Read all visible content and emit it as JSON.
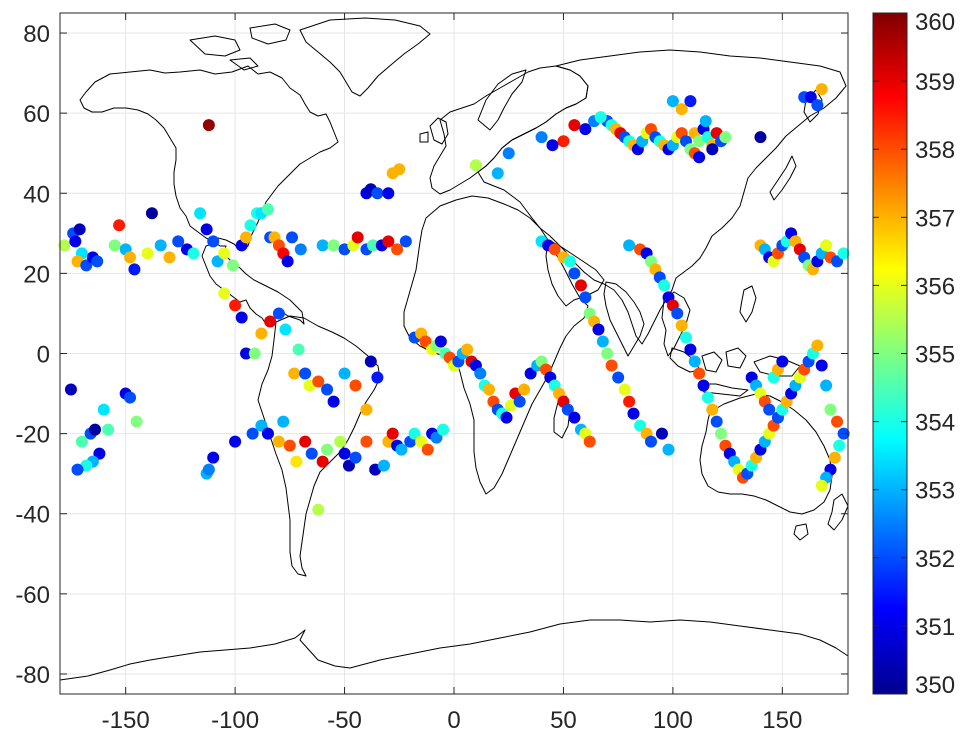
{
  "chart_data": {
    "type": "scatter",
    "title": "",
    "xlabel": "",
    "ylabel": "",
    "xlim": [
      -180,
      180
    ],
    "ylim": [
      -85,
      85
    ],
    "xticks": [
      -150,
      -100,
      -50,
      0,
      50,
      100,
      150
    ],
    "yticks": [
      80,
      60,
      40,
      20,
      0,
      -20,
      -40,
      -60,
      -80
    ],
    "xtick_labels": [
      "-150",
      "-100",
      "-50",
      "0",
      "50",
      "100",
      "150"
    ],
    "ytick_labels": [
      "80",
      "60",
      "40",
      "20",
      "0",
      "-20",
      "-40",
      "-60",
      "-80"
    ],
    "grid": true,
    "background_map": "world coastline outline",
    "colormap": "jet",
    "colorbar": {
      "range": [
        350,
        360
      ],
      "ticks": [
        350,
        351,
        352,
        353,
        354,
        355,
        356,
        357,
        358,
        359,
        360
      ],
      "tick_labels": [
        "350",
        "351",
        "352",
        "353",
        "354",
        "355",
        "356",
        "357",
        "358",
        "359",
        "360"
      ],
      "placement": "right"
    },
    "colors": {
      "coastline": "#000000",
      "grid": "#e6e6e6",
      "axes": "#262626"
    },
    "points": [
      [
        -178,
        27,
        355.5
      ],
      [
        -174,
        30,
        352
      ],
      [
        -171,
        31,
        350.5
      ],
      [
        -173,
        28,
        351
      ],
      [
        -170,
        25,
        353.5
      ],
      [
        -172,
        23,
        357
      ],
      [
        -168,
        22,
        352
      ],
      [
        -165,
        24,
        351
      ],
      [
        -163,
        23,
        352
      ],
      [
        -155,
        27,
        355
      ],
      [
        -153,
        32,
        358.5
      ],
      [
        -150,
        26,
        353
      ],
      [
        -148,
        24,
        357
      ],
      [
        -146,
        21,
        351.5
      ],
      [
        -140,
        25,
        356
      ],
      [
        -138,
        35,
        350.2
      ],
      [
        -134,
        27,
        353
      ],
      [
        -130,
        24,
        357
      ],
      [
        -126,
        28,
        352
      ],
      [
        -122,
        26,
        351
      ],
      [
        -119,
        25,
        354
      ],
      [
        -116,
        35,
        353.5
      ],
      [
        -113,
        31,
        351
      ],
      [
        -110,
        28,
        352
      ],
      [
        -108,
        23,
        353
      ],
      [
        -105,
        25,
        356
      ],
      [
        -101,
        22,
        355
      ],
      [
        -97,
        27,
        351
      ],
      [
        -95,
        29,
        357
      ],
      [
        -93,
        32,
        354
      ],
      [
        -90,
        35,
        354
      ],
      [
        -88,
        35,
        353.5
      ],
      [
        -85,
        36,
        354.5
      ],
      [
        -84,
        29,
        352
      ],
      [
        -82,
        29,
        357
      ],
      [
        -80,
        27,
        358
      ],
      [
        -78,
        25,
        358.8
      ],
      [
        -76,
        23,
        351
      ],
      [
        -74,
        29,
        352
      ],
      [
        -70,
        26,
        352.5
      ],
      [
        -60,
        27,
        353
      ],
      [
        -55,
        27,
        355
      ],
      [
        -50,
        26,
        352
      ],
      [
        -46,
        27,
        356
      ],
      [
        -44,
        29,
        359
      ],
      [
        -40,
        26,
        352
      ],
      [
        -37,
        27,
        354.5
      ],
      [
        -33,
        27,
        351
      ],
      [
        -30,
        28,
        359
      ],
      [
        -26,
        26,
        358
      ],
      [
        -22,
        28,
        352
      ],
      [
        -40,
        40,
        351
      ],
      [
        -38,
        41,
        350.5
      ],
      [
        -35,
        40,
        352
      ],
      [
        -30,
        40,
        351
      ],
      [
        -28,
        45,
        357
      ],
      [
        -25,
        46,
        357
      ],
      [
        -112,
        57,
        359.8
      ],
      [
        -175,
        -9,
        350.5
      ],
      [
        -160,
        -14,
        353.5
      ],
      [
        -158,
        -19,
        354.5
      ],
      [
        -150,
        -10,
        351
      ],
      [
        -148,
        -11,
        352
      ],
      [
        -145,
        -17,
        355
      ],
      [
        -170,
        -22,
        354.5
      ],
      [
        -166,
        -20,
        352
      ],
      [
        -164,
        -19,
        350.2
      ],
      [
        -162,
        -25,
        351
      ],
      [
        -165,
        -27,
        353
      ],
      [
        -168,
        -28,
        354
      ],
      [
        -172,
        -29,
        352
      ],
      [
        -113,
        -30,
        353
      ],
      [
        -112,
        -29,
        352.5
      ],
      [
        -110,
        -26,
        351
      ],
      [
        -100,
        -22,
        351
      ],
      [
        -92,
        -20,
        352
      ],
      [
        -88,
        -18,
        353
      ],
      [
        -85,
        -20,
        351
      ],
      [
        -80,
        -22,
        357
      ],
      [
        -78,
        -17,
        353
      ],
      [
        -75,
        -23,
        358
      ],
      [
        -72,
        -27,
        356.5
      ],
      [
        -68,
        -22,
        359
      ],
      [
        -65,
        -25,
        352
      ],
      [
        -60,
        -27,
        359
      ],
      [
        -58,
        -24,
        355
      ],
      [
        -52,
        -22,
        355.5
      ],
      [
        -50,
        -25,
        351
      ],
      [
        -48,
        -28,
        350.5
      ],
      [
        -45,
        -26,
        352
      ],
      [
        -40,
        -22,
        358
      ],
      [
        -36,
        -29,
        350.5
      ],
      [
        -32,
        -28,
        353
      ],
      [
        -30,
        -22,
        357
      ],
      [
        -28,
        -20,
        359
      ],
      [
        -26,
        -23,
        351
      ],
      [
        -24,
        -24,
        353
      ],
      [
        -20,
        -22,
        352
      ],
      [
        -18,
        -20,
        354
      ],
      [
        -15,
        -22,
        356
      ],
      [
        -12,
        -24,
        358
      ],
      [
        -10,
        -20,
        351
      ],
      [
        -8,
        -21,
        352.5
      ],
      [
        -5,
        -19,
        354
      ],
      [
        -62,
        -39,
        355.5
      ],
      [
        -105,
        15,
        356
      ],
      [
        -100,
        12,
        358.5
      ],
      [
        -97,
        9,
        351
      ],
      [
        -95,
        0,
        351
      ],
      [
        -91,
        0,
        355
      ],
      [
        -88,
        5,
        357
      ],
      [
        -84,
        8,
        359
      ],
      [
        -80,
        10,
        352
      ],
      [
        -77,
        6,
        353.5
      ],
      [
        -73,
        -5,
        357
      ],
      [
        -71,
        1,
        354.5
      ],
      [
        -68,
        -5,
        352
      ],
      [
        -66,
        -8,
        356
      ],
      [
        -62,
        -7,
        358
      ],
      [
        -58,
        -9,
        352
      ],
      [
        -55,
        -12,
        351
      ],
      [
        -50,
        -5,
        353
      ],
      [
        -45,
        -8,
        358
      ],
      [
        -40,
        -14,
        357
      ],
      [
        -38,
        -2,
        350.5
      ],
      [
        -35,
        -6,
        351.5
      ],
      [
        -18,
        4,
        352
      ],
      [
        -15,
        5,
        357
      ],
      [
        -13,
        3,
        358
      ],
      [
        -10,
        1,
        356
      ],
      [
        -8,
        2,
        355
      ],
      [
        -6,
        3,
        351
      ],
      [
        -4,
        0,
        354.5
      ],
      [
        -2,
        -1,
        358
      ],
      [
        0,
        -3,
        356
      ],
      [
        2,
        -2,
        352
      ],
      [
        4,
        0,
        353
      ],
      [
        6,
        1,
        357
      ],
      [
        8,
        -2,
        359
      ],
      [
        10,
        -3,
        351
      ],
      [
        12,
        -5,
        352.5
      ],
      [
        14,
        -8,
        354
      ],
      [
        16,
        -9,
        357
      ],
      [
        18,
        -12,
        358
      ],
      [
        20,
        -14,
        352
      ],
      [
        22,
        -15,
        354
      ],
      [
        24,
        -16,
        351
      ],
      [
        26,
        -13,
        356
      ],
      [
        28,
        -10,
        359
      ],
      [
        30,
        -12,
        352
      ],
      [
        32,
        -9,
        357
      ],
      [
        35,
        -5,
        351
      ],
      [
        38,
        -3,
        353
      ],
      [
        40,
        -2,
        355
      ],
      [
        42,
        -4,
        358
      ],
      [
        44,
        -6,
        351
      ],
      [
        46,
        -8,
        354
      ],
      [
        48,
        -10,
        357
      ],
      [
        50,
        -12,
        359
      ],
      [
        52,
        -14,
        352
      ],
      [
        55,
        -16,
        351
      ],
      [
        58,
        -19,
        353
      ],
      [
        60,
        -20,
        356
      ],
      [
        62,
        -22,
        358
      ],
      [
        40,
        28,
        353.5
      ],
      [
        43,
        27,
        351
      ],
      [
        46,
        26,
        358
      ],
      [
        50,
        24,
        357
      ],
      [
        53,
        23,
        354
      ],
      [
        55,
        20,
        352
      ],
      [
        58,
        17,
        359
      ],
      [
        60,
        14,
        352
      ],
      [
        62,
        10,
        355
      ],
      [
        64,
        8,
        357
      ],
      [
        66,
        6,
        351
      ],
      [
        68,
        3,
        353
      ],
      [
        70,
        0,
        355
      ],
      [
        72,
        -3,
        358
      ],
      [
        75,
        -6,
        352
      ],
      [
        78,
        -9,
        356
      ],
      [
        80,
        -12,
        358.5
      ],
      [
        82,
        -15,
        351
      ],
      [
        85,
        -18,
        354
      ],
      [
        88,
        -20,
        357
      ],
      [
        90,
        -22,
        352
      ],
      [
        95,
        -20,
        350.5
      ],
      [
        98,
        -24,
        353
      ],
      [
        80,
        27,
        353
      ],
      [
        85,
        26,
        358
      ],
      [
        88,
        25,
        351
      ],
      [
        90,
        23,
        355
      ],
      [
        92,
        21,
        357
      ],
      [
        94,
        19,
        352
      ],
      [
        96,
        17,
        354
      ],
      [
        98,
        14,
        351
      ],
      [
        100,
        12,
        359
      ],
      [
        102,
        10,
        352
      ],
      [
        104,
        7,
        357
      ],
      [
        106,
        4,
        354
      ],
      [
        108,
        1,
        351
      ],
      [
        110,
        -2,
        353
      ],
      [
        112,
        -5,
        358
      ],
      [
        114,
        -8,
        351
      ],
      [
        116,
        -11,
        354
      ],
      [
        118,
        -14,
        357
      ],
      [
        120,
        -17,
        352
      ],
      [
        122,
        -20,
        355
      ],
      [
        124,
        -23,
        358
      ],
      [
        126,
        -25,
        351
      ],
      [
        128,
        -27,
        353
      ],
      [
        130,
        -29,
        356
      ],
      [
        132,
        -31,
        358
      ],
      [
        134,
        -30,
        352
      ],
      [
        136,
        -28,
        354
      ],
      [
        138,
        -26,
        357
      ],
      [
        140,
        -24,
        351
      ],
      [
        142,
        -22,
        353
      ],
      [
        144,
        -20,
        356
      ],
      [
        146,
        -18,
        358
      ],
      [
        148,
        -16,
        352
      ],
      [
        150,
        -14,
        354
      ],
      [
        152,
        -12,
        357
      ],
      [
        154,
        -10,
        351
      ],
      [
        156,
        -8,
        353
      ],
      [
        158,
        -6,
        356
      ],
      [
        160,
        -4,
        358
      ],
      [
        162,
        -2,
        352
      ],
      [
        164,
        0,
        354
      ],
      [
        166,
        2,
        357
      ],
      [
        168,
        -3,
        351
      ],
      [
        170,
        -8,
        353
      ],
      [
        172,
        -14,
        355
      ],
      [
        175,
        -17,
        358
      ],
      [
        178,
        -20,
        352
      ],
      [
        176,
        -23,
        354
      ],
      [
        174,
        -26,
        357
      ],
      [
        172,
        -29,
        351
      ],
      [
        170,
        -31,
        353
      ],
      [
        168,
        -33,
        356
      ],
      [
        140,
        27,
        357
      ],
      [
        142,
        26,
        353
      ],
      [
        144,
        24,
        351
      ],
      [
        146,
        23,
        356
      ],
      [
        148,
        25,
        358
      ],
      [
        150,
        27,
        352
      ],
      [
        152,
        28,
        354
      ],
      [
        154,
        30,
        351
      ],
      [
        156,
        28,
        357
      ],
      [
        158,
        26,
        359
      ],
      [
        160,
        24,
        352
      ],
      [
        162,
        22,
        355
      ],
      [
        164,
        21,
        357
      ],
      [
        166,
        23,
        351
      ],
      [
        168,
        25,
        353
      ],
      [
        170,
        27,
        356
      ],
      [
        172,
        24,
        358
      ],
      [
        175,
        23,
        352
      ],
      [
        178,
        25,
        354
      ],
      [
        136,
        -6,
        351
      ],
      [
        138,
        -8,
        353
      ],
      [
        140,
        -10,
        356
      ],
      [
        142,
        -12,
        358
      ],
      [
        144,
        -14,
        352
      ],
      [
        146,
        -6,
        354
      ],
      [
        148,
        -4,
        357
      ],
      [
        150,
        -2,
        351
      ],
      [
        110,
        55,
        357
      ],
      [
        112,
        53,
        355
      ],
      [
        114,
        56,
        351
      ],
      [
        116,
        54,
        354
      ],
      [
        118,
        52,
        357
      ],
      [
        120,
        55,
        359
      ],
      [
        122,
        53,
        352
      ],
      [
        124,
        54,
        355
      ],
      [
        70,
        58,
        352
      ],
      [
        72,
        57,
        354
      ],
      [
        74,
        56,
        357
      ],
      [
        76,
        55,
        359
      ],
      [
        78,
        54,
        352
      ],
      [
        80,
        53,
        354
      ],
      [
        82,
        52,
        357
      ],
      [
        84,
        51,
        351
      ],
      [
        86,
        53,
        353
      ],
      [
        88,
        55,
        356
      ],
      [
        90,
        56,
        358
      ],
      [
        92,
        54,
        352
      ],
      [
        94,
        53,
        354
      ],
      [
        96,
        52,
        357
      ],
      [
        98,
        51,
        351
      ],
      [
        100,
        52,
        353
      ],
      [
        102,
        54,
        356
      ],
      [
        104,
        55,
        358
      ],
      [
        106,
        53,
        352
      ],
      [
        108,
        51,
        355
      ],
      [
        110,
        50,
        358
      ],
      [
        112,
        49,
        351
      ],
      [
        115,
        58,
        353
      ],
      [
        118,
        51,
        350.5
      ],
      [
        55,
        57,
        359
      ],
      [
        60,
        56,
        351
      ],
      [
        64,
        58,
        352.5
      ],
      [
        67,
        59,
        354
      ],
      [
        50,
        53,
        358.5
      ],
      [
        45,
        52,
        351
      ],
      [
        40,
        54,
        352.5
      ],
      [
        100,
        63,
        353
      ],
      [
        104,
        61,
        357
      ],
      [
        108,
        63,
        351.5
      ],
      [
        140,
        54,
        350.2
      ],
      [
        160,
        64,
        352
      ],
      [
        163,
        64,
        351
      ],
      [
        166,
        62,
        352
      ],
      [
        168,
        66,
        357
      ],
      [
        10,
        47,
        355.5
      ],
      [
        20,
        45,
        353
      ],
      [
        25,
        50,
        352.5
      ]
    ]
  }
}
